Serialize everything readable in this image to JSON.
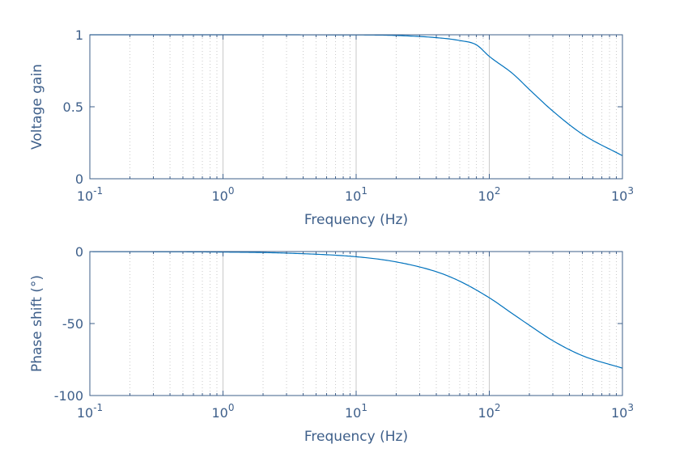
{
  "chart_data": [
    {
      "type": "line",
      "xlabel": "Frequency (Hz)",
      "ylabel": "Voltage gain",
      "xscale": "log",
      "xlim": [
        0.1,
        1000
      ],
      "ylim": [
        0,
        1
      ],
      "yticks": [
        0,
        0.5,
        1
      ],
      "ytick_labels": [
        "0",
        "0.5",
        "1"
      ],
      "xticks": [
        0.1,
        1,
        10,
        100,
        1000
      ],
      "xtick_labels": [
        {
          "base": "10",
          "exp": "-1"
        },
        {
          "base": "10",
          "exp": "0"
        },
        {
          "base": "10",
          "exp": "1"
        },
        {
          "base": "10",
          "exp": "2"
        },
        {
          "base": "10",
          "exp": "3"
        }
      ],
      "grid": "x-major-minor",
      "series": [
        {
          "color": "#0072bd",
          "x": [
            0.1,
            1,
            10,
            20,
            40,
            60,
            80,
            100,
            150,
            200,
            300,
            500,
            1000
          ],
          "y": [
            1.0,
            1.0,
            0.999,
            0.995,
            0.98,
            0.96,
            0.93,
            0.85,
            0.73,
            0.62,
            0.47,
            0.31,
            0.16
          ]
        }
      ]
    },
    {
      "type": "line",
      "xlabel": "Frequency (Hz)",
      "ylabel": "Phase shift (°)",
      "xscale": "log",
      "xlim": [
        0.1,
        1000
      ],
      "ylim": [
        -100,
        0
      ],
      "yticks": [
        -100,
        -50,
        0
      ],
      "ytick_labels": [
        "-100",
        "-50",
        "0"
      ],
      "xticks": [
        0.1,
        1,
        10,
        100,
        1000
      ],
      "xtick_labels": [
        {
          "base": "10",
          "exp": "-1"
        },
        {
          "base": "10",
          "exp": "0"
        },
        {
          "base": "10",
          "exp": "1"
        },
        {
          "base": "10",
          "exp": "2"
        },
        {
          "base": "10",
          "exp": "3"
        }
      ],
      "grid": "x-major-minor",
      "series": [
        {
          "color": "#0072bd",
          "x": [
            0.1,
            1,
            3,
            10,
            20,
            40,
            60,
            100,
            150,
            200,
            300,
            500,
            1000
          ],
          "y": [
            -0.04,
            -0.36,
            -1.1,
            -3.6,
            -7.2,
            -14.0,
            -20.6,
            -32.1,
            -43.3,
            -51.2,
            -61.9,
            -72.3,
            -81.0
          ]
        }
      ]
    }
  ]
}
